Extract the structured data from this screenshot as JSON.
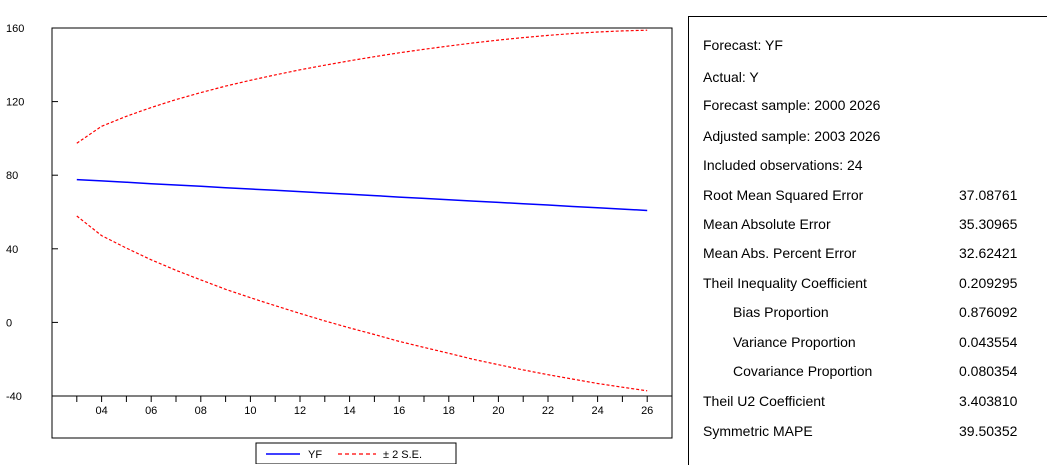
{
  "chart_data": {
    "type": "line",
    "title": "",
    "xlabel": "",
    "ylabel": "",
    "x": [
      2003,
      2004,
      2005,
      2006,
      2007,
      2008,
      2009,
      2010,
      2011,
      2012,
      2013,
      2014,
      2015,
      2016,
      2017,
      2018,
      2019,
      2020,
      2021,
      2022,
      2023,
      2024,
      2025,
      2026
    ],
    "xlim": [
      2002,
      2027
    ],
    "xticks": [
      "04",
      "06",
      "08",
      "10",
      "12",
      "14",
      "16",
      "18",
      "20",
      "22",
      "24",
      "26"
    ],
    "xtick_values": [
      2004,
      2006,
      2008,
      2010,
      2012,
      2014,
      2016,
      2018,
      2020,
      2022,
      2024,
      2026
    ],
    "ylim": [
      -40,
      160
    ],
    "yticks": [
      -40,
      0,
      40,
      80,
      120,
      160
    ],
    "grid": false,
    "legend_position": "bottom-center",
    "series": [
      {
        "name": "YF",
        "color": "#0000ff",
        "style": "solid",
        "values": [
          77.6,
          76.9,
          76.2,
          75.4,
          74.7,
          74.0,
          73.2,
          72.5,
          71.8,
          71.1,
          70.3,
          69.6,
          68.9,
          68.1,
          67.4,
          66.7,
          65.9,
          65.2,
          64.5,
          63.8,
          63.0,
          62.3,
          61.6,
          60.8
        ]
      },
      {
        "name": "± 2 S.E.",
        "color": "#ff0000",
        "style": "dashed",
        "values": [
          97.4,
          106.6,
          112.0,
          116.8,
          121.1,
          124.9,
          128.4,
          131.6,
          134.5,
          137.3,
          139.8,
          142.2,
          144.4,
          146.5,
          148.4,
          150.2,
          151.9,
          153.4,
          154.8,
          156.0,
          157.0,
          157.8,
          158.4,
          158.8
        ]
      },
      {
        "name": "",
        "color": "#ff0000",
        "style": "dashed",
        "values": [
          57.8,
          47.2,
          40.4,
          34.0,
          28.3,
          23.1,
          18.0,
          13.4,
          9.1,
          4.9,
          0.8,
          -3.0,
          -6.6,
          -10.3,
          -13.6,
          -16.8,
          -20.1,
          -23.0,
          -25.8,
          -28.4,
          -30.8,
          -33.2,
          -35.2,
          -37.2
        ]
      }
    ]
  },
  "legend": {
    "yf": "YF",
    "se": "± 2 S.E."
  },
  "stats": {
    "forecast": "Forecast: YF",
    "actual": "Actual: Y",
    "sample": "Forecast sample: 2000 2026",
    "adjusted": "Adjusted sample: 2003 2026",
    "included": "Included observations: 24",
    "rows": [
      {
        "label": "Root Mean Squared Error",
        "value": "37.08761"
      },
      {
        "label": "Mean Absolute Error",
        "value": "35.30965"
      },
      {
        "label": "Mean Abs. Percent Error",
        "value": "32.62421"
      },
      {
        "label": "Theil Inequality Coefficient",
        "value": "0.209295"
      },
      {
        "label": "Bias Proportion",
        "value": "0.876092"
      },
      {
        "label": "Variance Proportion",
        "value": "0.043554"
      },
      {
        "label": "Covariance Proportion",
        "value": "0.080354"
      },
      {
        "label": "Theil U2 Coefficient",
        "value": "3.403810"
      },
      {
        "label": "Symmetric MAPE",
        "value": "39.50352"
      }
    ]
  }
}
